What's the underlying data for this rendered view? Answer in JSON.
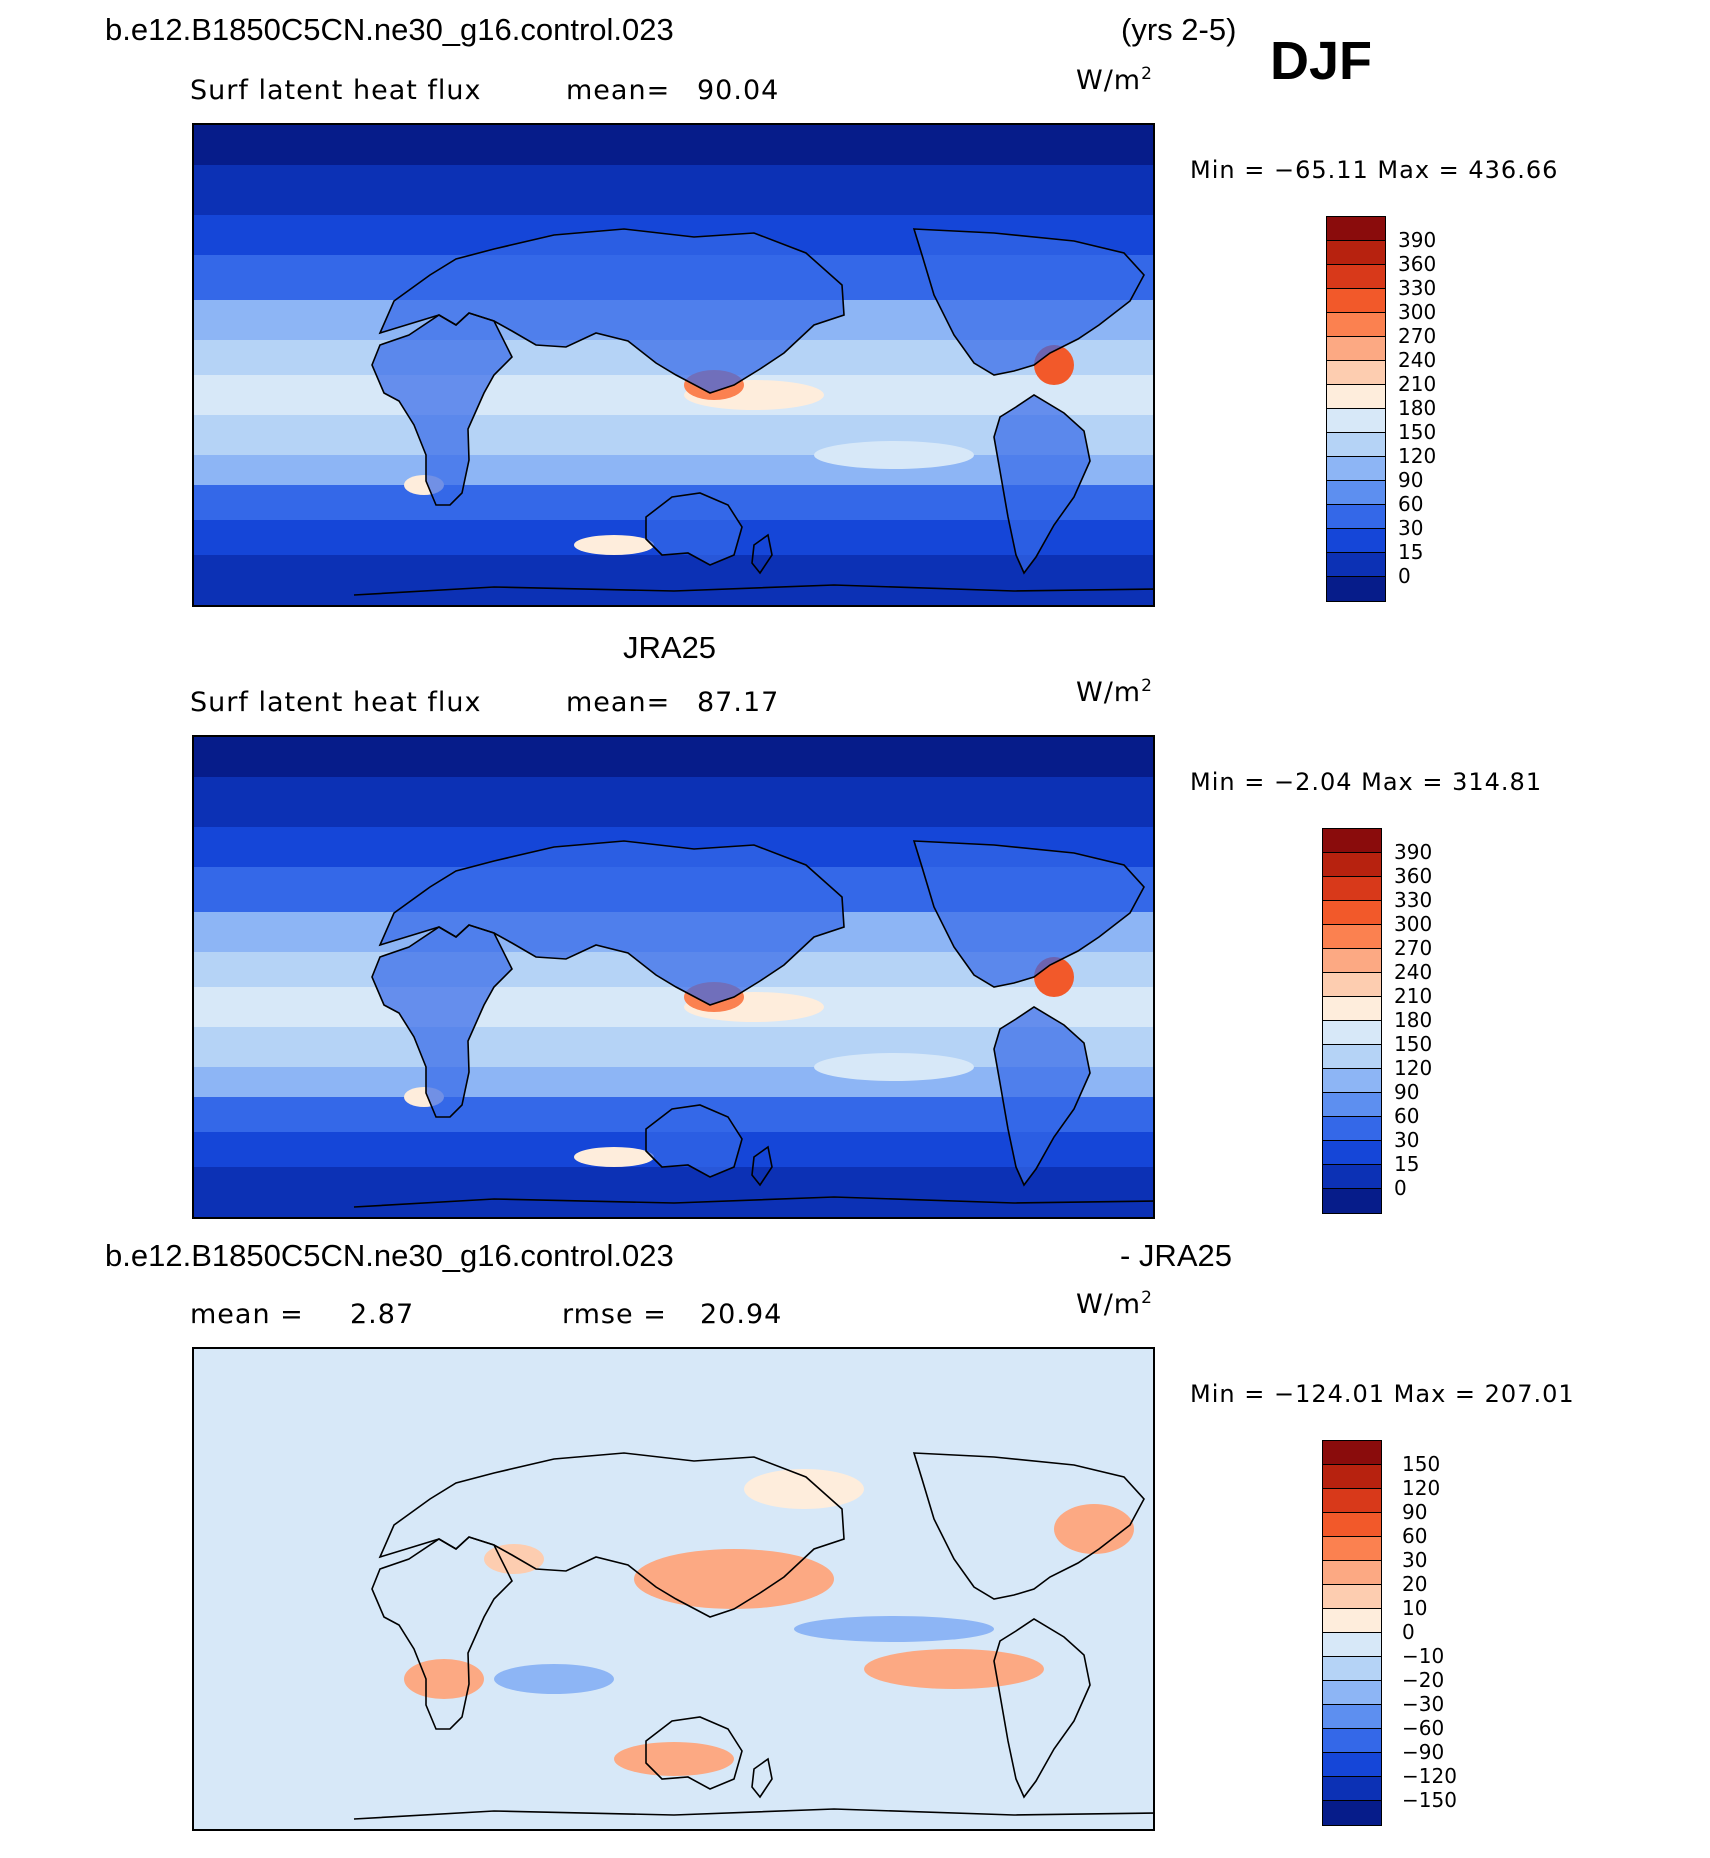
{
  "season": "DJF",
  "panel1": {
    "case_name": "b.e12.B1850C5CN.ne30_g16.control.023",
    "years": "(yrs 2-5)",
    "variable": "Surf latent heat flux",
    "mean_label": "mean=",
    "mean_value": "90.04",
    "units": "W/m",
    "units_exp": "2",
    "minmax": "Min = −65.11  Max = 436.66",
    "colorbar": {
      "labels": [
        "390",
        "360",
        "330",
        "300",
        "270",
        "240",
        "210",
        "180",
        "150",
        "120",
        "90",
        "60",
        "30",
        "15",
        "0"
      ],
      "colors": [
        "#8a0c0c",
        "#b7220f",
        "#d8391a",
        "#f2592a",
        "#fb8150",
        "#fca983",
        "#fdcdb0",
        "#feeddc",
        "#d7e8f8",
        "#b5d3f6",
        "#8db5f5",
        "#5d8ff0",
        "#3468e8",
        "#1546d8",
        "#0c31b5",
        "#061c8a"
      ]
    }
  },
  "panel2": {
    "title": "JRA25",
    "variable": "Surf latent heat flux",
    "mean_label": "mean=",
    "mean_value": "87.17",
    "units": "W/m",
    "units_exp": "2",
    "minmax": "Min =   −2.04  Max = 314.81",
    "colorbar": {
      "labels": [
        "390",
        "360",
        "330",
        "300",
        "270",
        "240",
        "210",
        "180",
        "150",
        "120",
        "90",
        "60",
        "30",
        "15",
        "0"
      ],
      "colors": [
        "#8a0c0c",
        "#b7220f",
        "#d8391a",
        "#f2592a",
        "#fb8150",
        "#fca983",
        "#fdcdb0",
        "#feeddc",
        "#d7e8f8",
        "#b5d3f6",
        "#8db5f5",
        "#5d8ff0",
        "#3468e8",
        "#1546d8",
        "#0c31b5",
        "#061c8a"
      ]
    }
  },
  "panel3": {
    "case_name": "b.e12.B1850C5CN.ne30_g16.control.023",
    "minus_label": "- JRA25",
    "mean_label": "mean =",
    "mean_value": "2.87",
    "rmse_label": "rmse =",
    "rmse_value": "20.94",
    "units": "W/m",
    "units_exp": "2",
    "minmax": "Min = −124.01  Max = 207.01",
    "colorbar": {
      "labels": [
        "150",
        "120",
        "90",
        "60",
        "30",
        "20",
        "10",
        "0",
        "−10",
        "−20",
        "−30",
        "−60",
        "−90",
        "−120",
        "−150"
      ],
      "colors": [
        "#8a0c0c",
        "#b7220f",
        "#d8391a",
        "#f2592a",
        "#fb8150",
        "#fca983",
        "#fdcdb0",
        "#feeddc",
        "#d7e8f8",
        "#b5d3f6",
        "#8db5f5",
        "#5d8ff0",
        "#3468e8",
        "#1546d8",
        "#0c31b5",
        "#061c8a"
      ]
    }
  }
}
